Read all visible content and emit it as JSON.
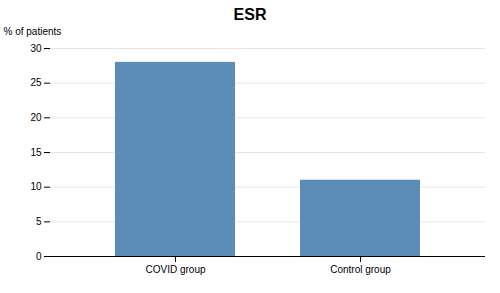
{
  "chart_data": {
    "type": "bar",
    "title": "ESR",
    "categories": [
      "COVID group",
      "Control group"
    ],
    "values": [
      28,
      11
    ],
    "color": "#5B8DB8",
    "ylabel": "% of patients",
    "ylim": [
      0,
      30
    ],
    "yticks": [
      0,
      5,
      10,
      15,
      20,
      25,
      30
    ],
    "grid": true
  }
}
